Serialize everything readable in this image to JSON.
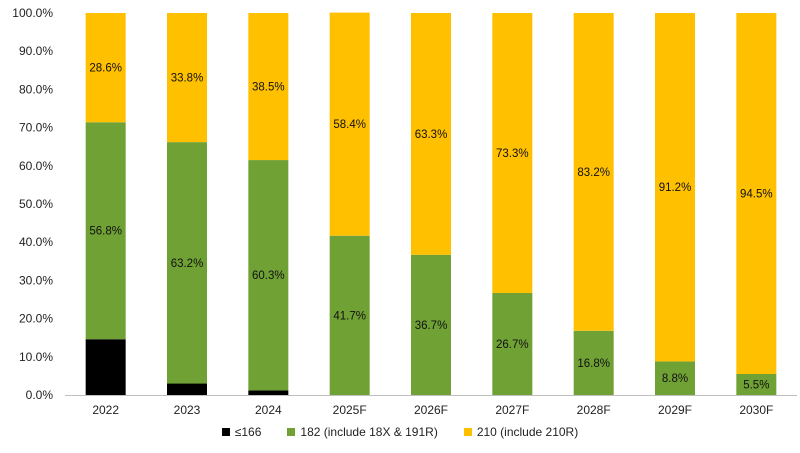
{
  "chart_data": {
    "type": "bar",
    "stacked": true,
    "percent": true,
    "categories": [
      "2022",
      "2023",
      "2024",
      "2025F",
      "2026F",
      "2027F",
      "2028F",
      "2029F",
      "2030F"
    ],
    "series": [
      {
        "name": "≤166",
        "color": "#000000",
        "values": [
          14.6,
          3.0,
          1.2,
          0,
          0,
          0,
          0,
          0,
          0
        ],
        "labels": [
          "",
          "",
          "",
          "",
          "",
          "",
          "",
          "",
          ""
        ]
      },
      {
        "name": "182 (include 18X & 191R)",
        "color": "#70a135",
        "values": [
          56.8,
          63.2,
          60.3,
          41.7,
          36.7,
          26.7,
          16.8,
          8.8,
          5.5
        ],
        "labels": [
          "56.8%",
          "63.2%",
          "60.3%",
          "41.7%",
          "36.7%",
          "26.7%",
          "16.8%",
          "8.8%",
          "5.5%"
        ]
      },
      {
        "name": "210 (include 210R)",
        "color": "#ffc000",
        "values": [
          28.6,
          33.8,
          38.5,
          58.4,
          63.3,
          73.3,
          83.2,
          91.2,
          94.5
        ],
        "labels": [
          "28.6%",
          "33.8%",
          "38.5%",
          "58.4%",
          "63.3%",
          "73.3%",
          "83.2%",
          "91.2%",
          "94.5%"
        ]
      }
    ],
    "yticks": [
      "0.0%",
      "10.0%",
      "20.0%",
      "30.0%",
      "40.0%",
      "50.0%",
      "60.0%",
      "70.0%",
      "80.0%",
      "90.0%",
      "100.0%"
    ],
    "ylim": [
      0,
      100
    ],
    "grid": false,
    "legend_position": "bottom",
    "title": "",
    "xlabel": "",
    "ylabel": ""
  }
}
